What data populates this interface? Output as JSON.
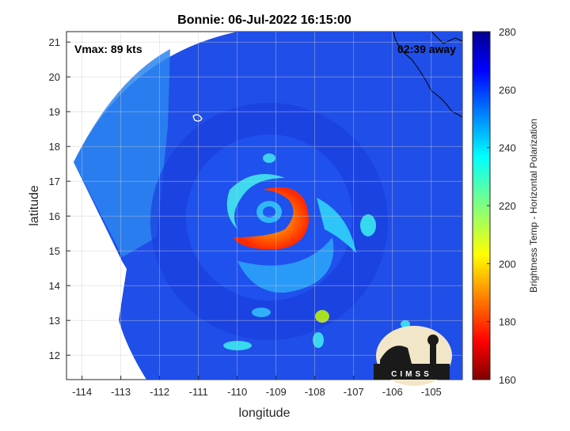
{
  "chart_data": {
    "type": "heatmap",
    "title": "Bonnie: 06-Jul-2022 16:15:00",
    "xlabel": "longitude",
    "ylabel": "latitude",
    "xlim": [
      -114.4,
      -104.2
    ],
    "ylim": [
      11.3,
      21.3
    ],
    "xticks": [
      -114,
      -113,
      -112,
      -111,
      -110,
      -109,
      -108,
      -107,
      -106,
      -105
    ],
    "yticks": [
      12,
      13,
      14,
      15,
      16,
      17,
      18,
      19,
      20,
      21
    ],
    "grid": true,
    "annotations": {
      "vmax": "Vmax: 89 kts",
      "time_away": "02:39 away"
    },
    "logo_text": "CIMSS",
    "colorbar": {
      "label": "Brightness Temp - Horizontal Polarization",
      "range": [
        160,
        280
      ],
      "ticks": [
        160,
        180,
        200,
        220,
        240,
        260,
        280
      ],
      "colormap": "jet"
    },
    "storm_center": {
      "lon": -109.0,
      "lat": 16.0
    },
    "swath": {
      "center_lon": -109.3,
      "center_lat": 16.2,
      "radius_deg": 5.0,
      "cut_west_lon": -111.8
    },
    "features": [
      {
        "name": "eyewall",
        "min_temp_k": 180
      },
      {
        "name": "rainband",
        "min_temp_k": 235
      }
    ]
  },
  "colors": {
    "background_field": "#1f4ee8",
    "coast": "#000000"
  }
}
